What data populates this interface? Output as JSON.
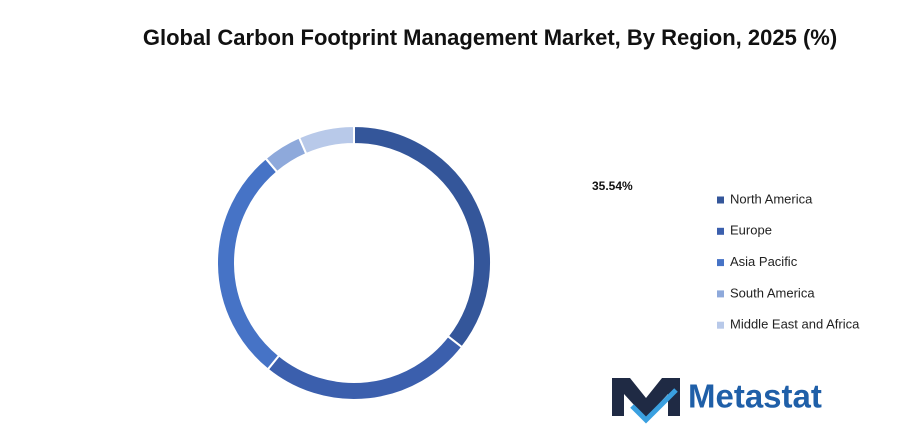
{
  "chart_data": {
    "type": "donut",
    "title": "Global Carbon Footprint Management Market, By Region, 2025 (%)",
    "categories": [
      "North America",
      "Europe",
      "Asia Pacific",
      "South America",
      "Middle East and Africa"
    ],
    "values": [
      35.54,
      25.3,
      28.0,
      4.6,
      6.56
    ],
    "value_labels": [
      "35.54%",
      null,
      null,
      null,
      null
    ],
    "colors": [
      "#34569a",
      "#3b5fad",
      "#4673c6",
      "#8ea9db",
      "#b8c9e9"
    ],
    "legend": "right"
  },
  "logo": "Metastat"
}
